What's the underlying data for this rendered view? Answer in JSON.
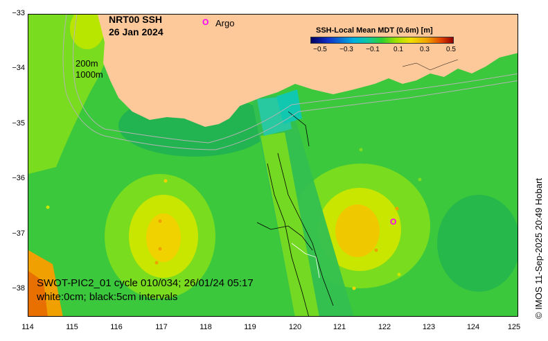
{
  "map": {
    "title_line1": "NRT00 SSH",
    "title_line2": "26 Jan 2024",
    "argo_legend_marker": "O",
    "argo_legend_label": "Argo",
    "contour_label_200": "200m",
    "contour_label_1000": "1000m",
    "swot_caption_line1": "SWOT-PIC2_01 cycle 010/034; 26/01/24 05:17",
    "swot_caption_line2": "white:0cm; black:5cm intervals",
    "side_text": "© IMOS 11-Sep-2025 20:49 Hobart",
    "argo_float_marker": "O",
    "colorbar": {
      "title": "SSH-Local Mean MDT (0.6m) [m]",
      "ticks": [
        "−0.5",
        "−0.3",
        "−0.1",
        "0.1",
        "0.3",
        "0.5"
      ]
    },
    "axes": {
      "lat_ticks": [
        "−33",
        "−34",
        "−35",
        "−36",
        "−37",
        "−38"
      ],
      "lon_ticks": [
        "114",
        "115",
        "116",
        "117",
        "118",
        "119",
        "120",
        "121",
        "122",
        "123",
        "124",
        "125"
      ]
    },
    "colors": {
      "land": "#fdc89a",
      "ssh_base": "#3cc83c",
      "argo": "#ff00ff"
    }
  }
}
